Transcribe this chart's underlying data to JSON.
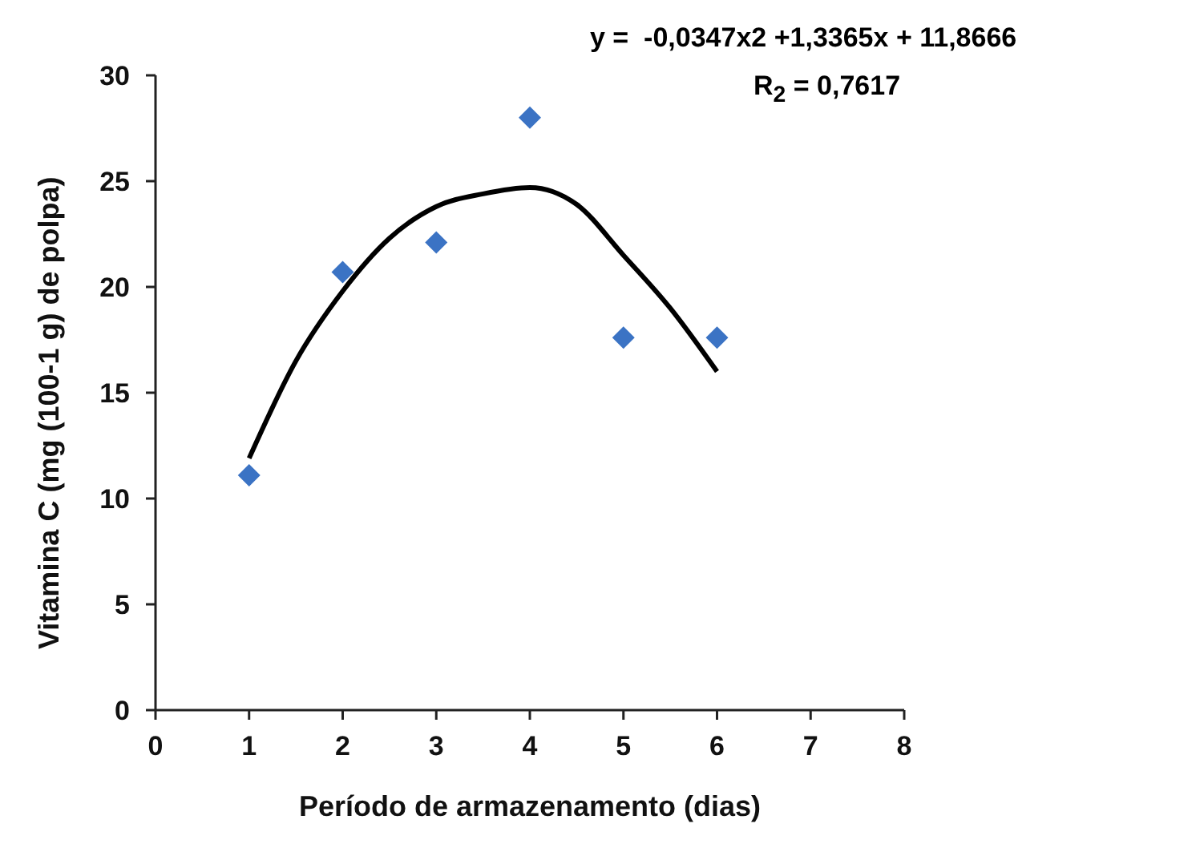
{
  "chart_data": {
    "type": "scatter",
    "xlabel": "Período de armazenamento (dias)",
    "ylabel": "Vitamina C (mg (100-1 g) de polpa)",
    "annotations": [
      "y =  -0,0347x2 +1,3365x + 11,8666",
      "R$_{2}$ = 0,7617"
    ],
    "x": [
      1,
      2,
      3,
      4,
      5,
      6
    ],
    "xlim": [
      0,
      8
    ],
    "xticks": [
      0,
      1,
      2,
      3,
      4,
      5,
      6,
      7,
      8
    ],
    "ylim": [
      0,
      30
    ],
    "yticks": [
      0,
      5,
      10,
      15,
      20,
      25,
      30
    ],
    "marker": "diamond",
    "series": [
      {
        "color": "#3b73c4",
        "values": [
          11.1,
          20.7,
          22.1,
          28,
          17.6,
          17.6
        ]
      },
      {
        "type": "line",
        "color": "#000000",
        "marker": "none",
        "x": [
          1,
          1.5,
          2,
          2.5,
          3,
          3.5,
          4,
          4.5,
          5,
          5.5,
          6
        ],
        "values": [
          11.9,
          16.5,
          19.8,
          22.3,
          23.8,
          24.4,
          24.7,
          23.9,
          21.5,
          19,
          16
        ]
      }
    ]
  }
}
